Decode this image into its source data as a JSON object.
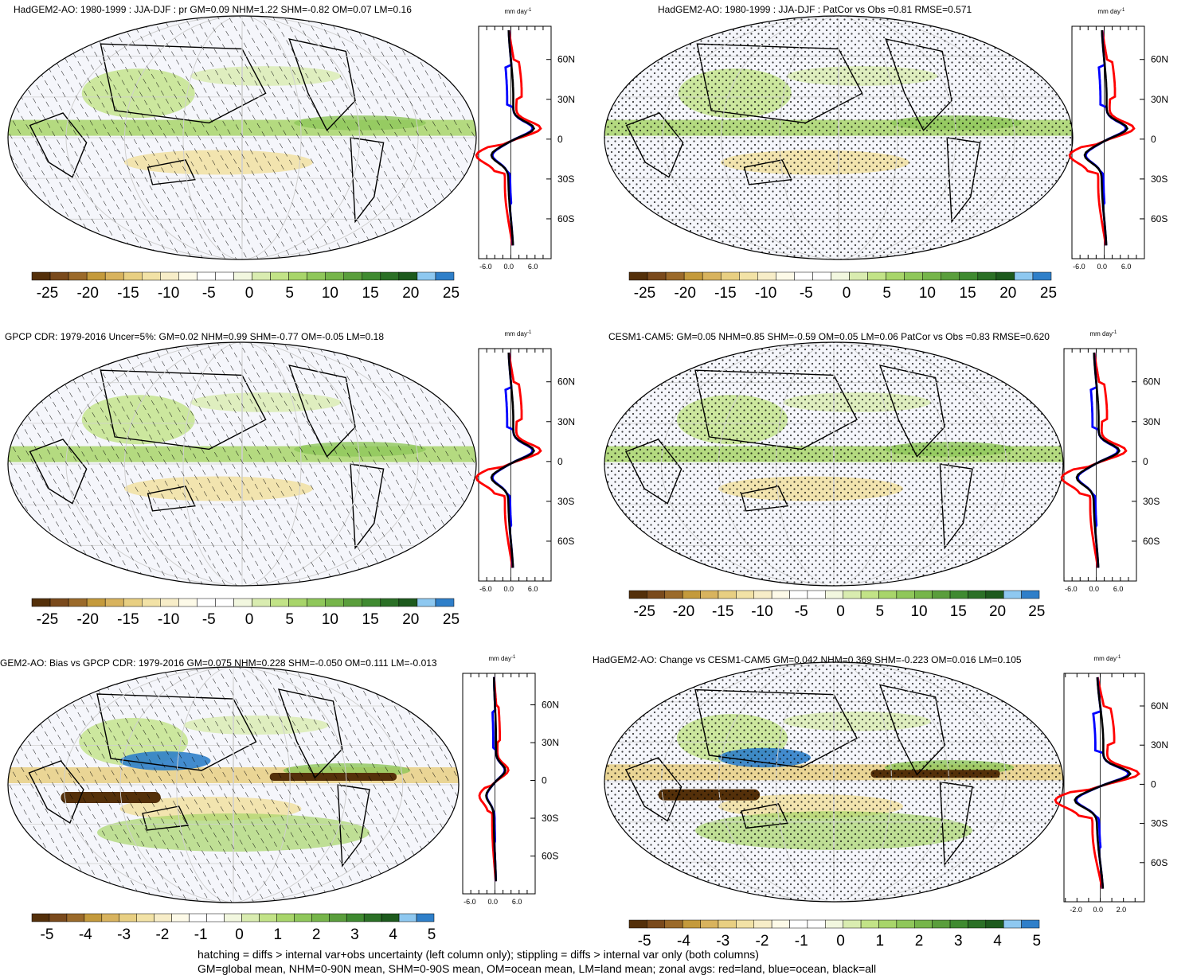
{
  "panels": [
    {
      "title": "HadGEM2-AO: 1980-1999 : JJA-DJF : pr GM=0.09 NHM=1.22 SHM=-0.82 OM=0.07 LM=0.16",
      "overlay": "hatch",
      "colorbar": "pr"
    },
    {
      "title": "HadGEM2-AO: 1980-1999 : JJA-DJF : PatCor vs Obs =0.81 RMSE=0.571",
      "overlay": "stipple",
      "colorbar": "pr"
    },
    {
      "title": "GPCP CDR: 1979-2016 Uncer=5%: GM=0.02 NHM=0.99 SHM=-0.77 OM=-0.05 LM=0.18",
      "overlay": "hatch",
      "colorbar": "pr"
    },
    {
      "title": "CESM1-CAM5: GM=0.05 NHM=0.85 SHM=-0.59 OM=0.05 LM=0.06 PatCor vs Obs =0.83 RMSE=0.620",
      "overlay": "stipple",
      "colorbar": "pr"
    },
    {
      "title": "GEM2-AO: Bias vs GPCP CDR: 1979-2016 GM=0.075 NHM=0.228 SHM=-0.050 OM=0.111 LM=-0.013",
      "overlay": "hatch",
      "colorbar": "diff"
    },
    {
      "title": "HadGEM2-AO: Change vs CESM1-CAM5 GM=0.042 NHM=0.369 SHM=-0.223 OM=0.016 LM=0.105",
      "overlay": "stipple",
      "colorbar": "diff"
    }
  ],
  "zonal": {
    "unit_label": "mm day",
    "unit_exp": "-1",
    "lat_ticks": [
      "60N",
      "30N",
      "0",
      "30S",
      "60S"
    ],
    "x_ticks_pr": [
      "-6.0",
      "0.0",
      "6.0"
    ],
    "x_ticks_change": [
      "-2.0",
      "0.0",
      "2.0"
    ],
    "series": [
      {
        "key": "land",
        "color": "#ff0000"
      },
      {
        "key": "ocean",
        "color": "#0000ff"
      },
      {
        "key": "all",
        "color": "#000000"
      }
    ]
  },
  "colorbars": {
    "pr": {
      "labels": [
        "-25",
        "-20",
        "-15",
        "-10",
        "-5",
        "0",
        "5",
        "10",
        "15",
        "20",
        "25"
      ]
    },
    "diff": {
      "labels": [
        "-5",
        "-4",
        "-3",
        "-2",
        "-1",
        "0",
        "1",
        "2",
        "3",
        "4",
        "5"
      ]
    },
    "colors": [
      "#54300a",
      "#7a4a1c",
      "#9b6a2a",
      "#c49a3c",
      "#d8b35e",
      "#e8cf82",
      "#f2e2a6",
      "#f7edc8",
      "#fdfae8",
      "#ffffff",
      "#ffffff",
      "#f2f7df",
      "#d9ecb0",
      "#c2e387",
      "#a8d56a",
      "#8fc75a",
      "#76b54a",
      "#5a9e3c",
      "#3f8a30",
      "#2b7026",
      "#1d5a1d",
      "#8ec8f0",
      "#2f7fc9"
    ]
  },
  "footer": {
    "line1": "hatching = diffs > internal var+obs uncertainty (left column only); stippling = diffs > internal var only (both columns)",
    "line2": "GM=global mean, NHM=0-90N mean, SHM=0-90S mean, OM=ocean mean, LM=land mean; zonal avgs: red=land, blue=ocean, black=all"
  }
}
